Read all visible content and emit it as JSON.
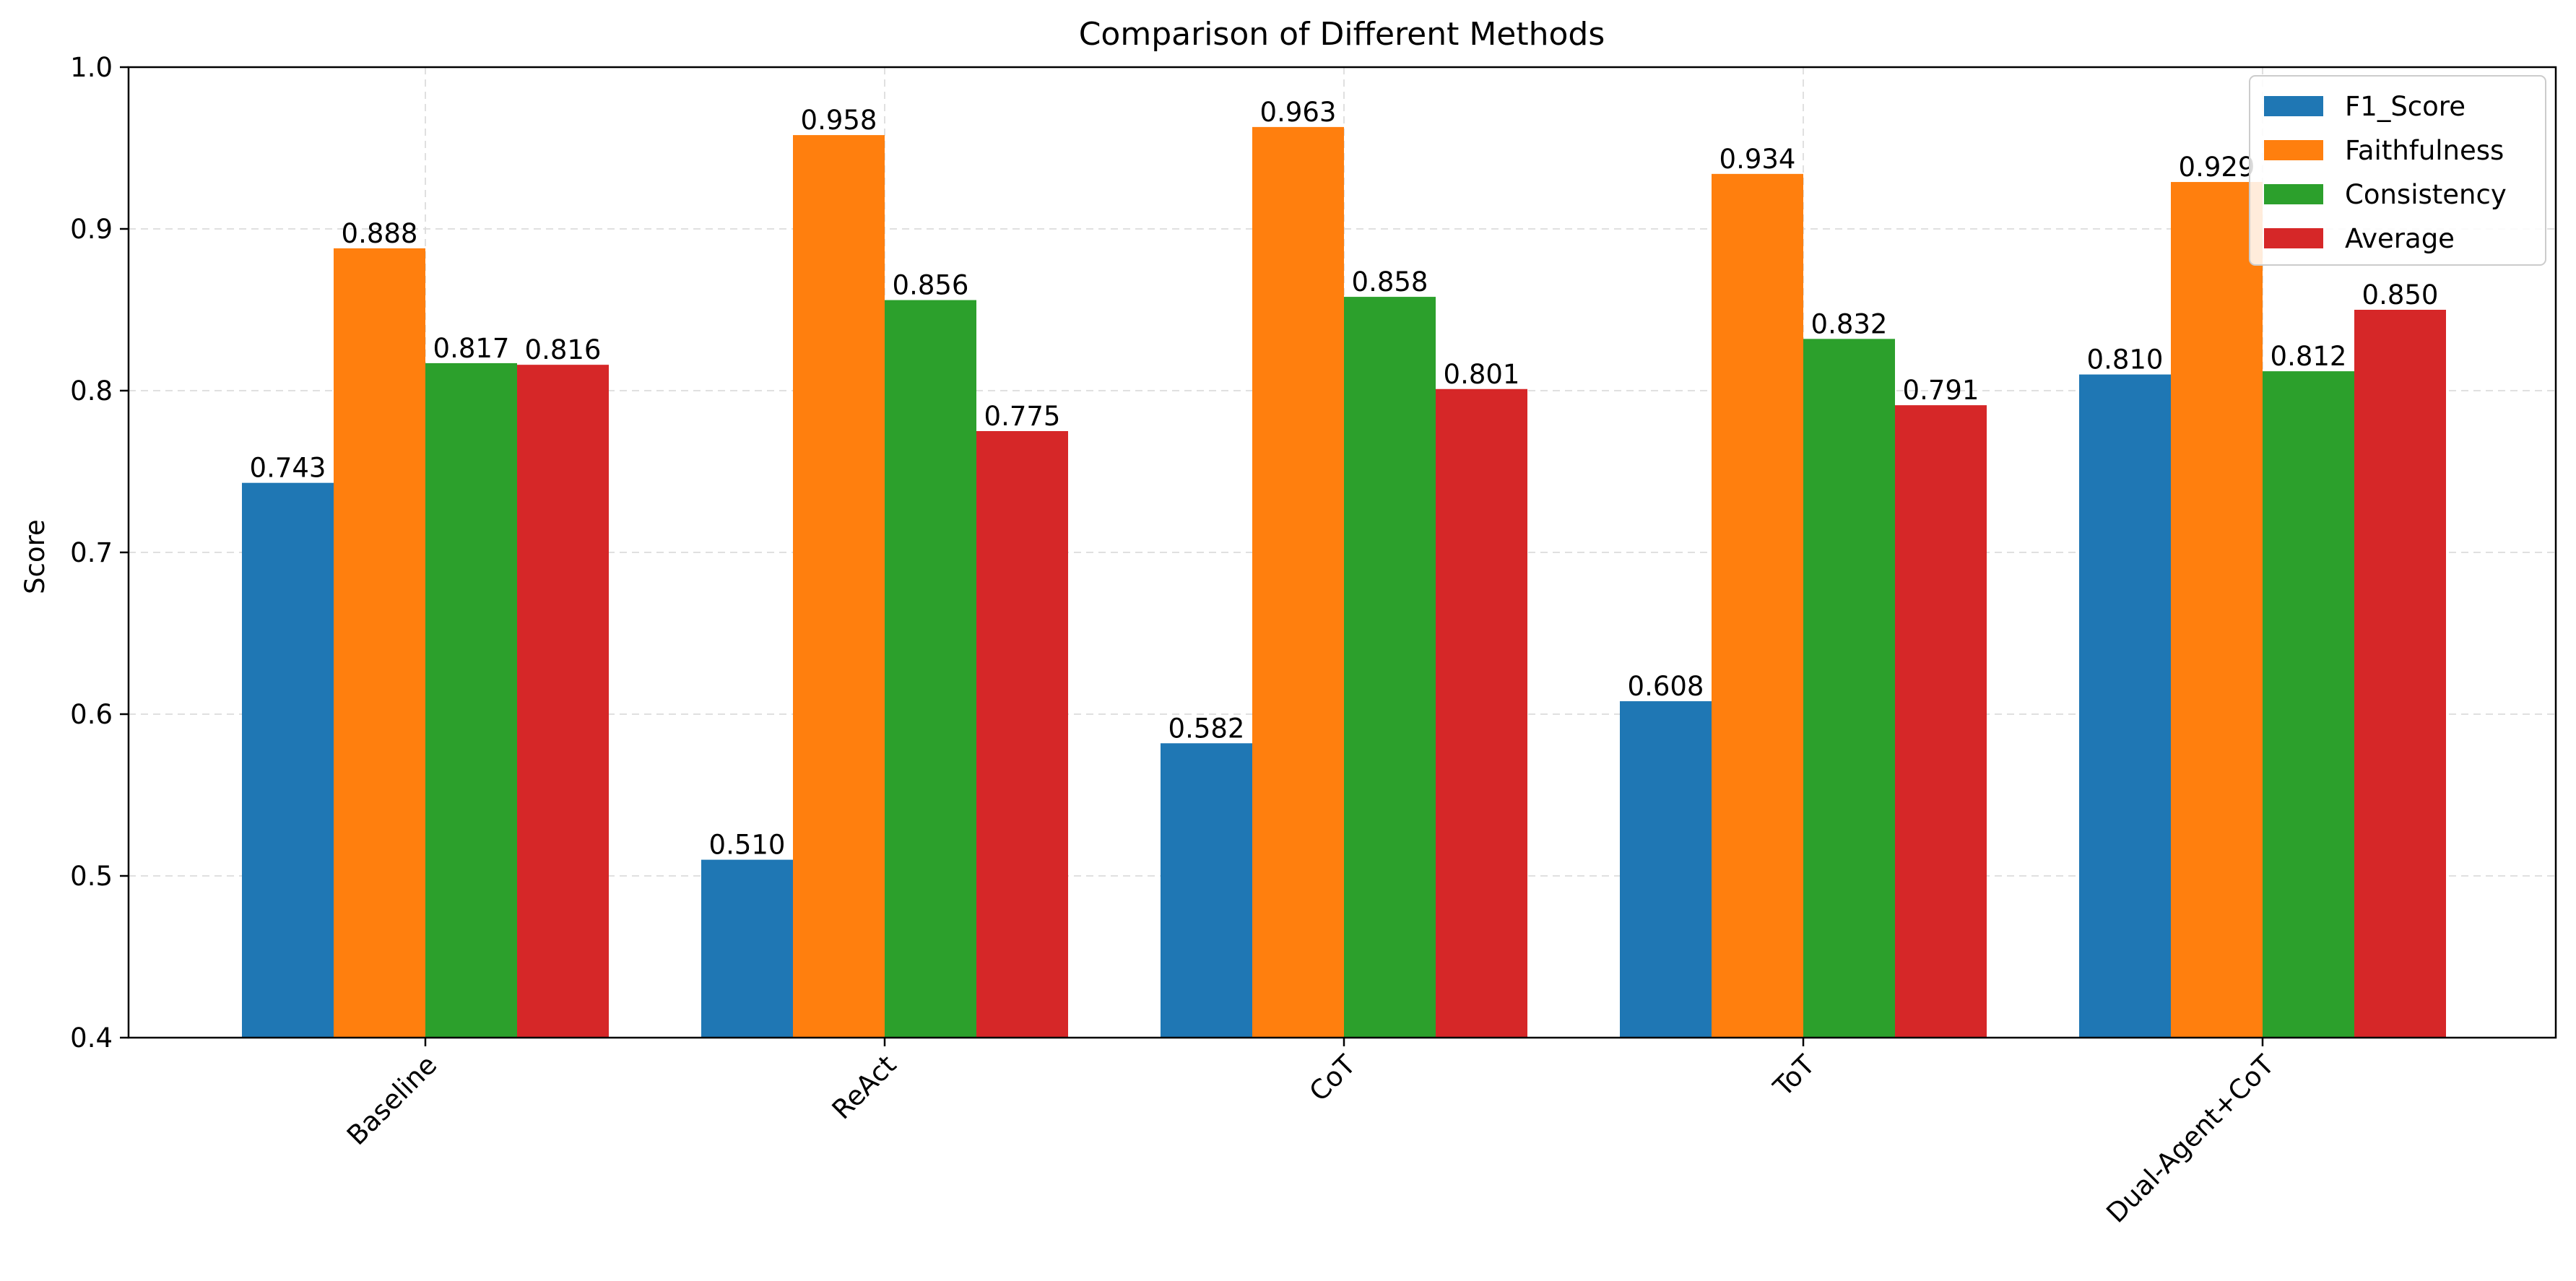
{
  "colors": {
    "F1_Score": "#1f77b4",
    "Faithfulness": "#ff7f0e",
    "Consistency": "#2ca02c",
    "Average": "#d62728"
  },
  "chart_data": {
    "type": "bar",
    "title": "Comparison of Different Methods",
    "xlabel": "",
    "ylabel": "Score",
    "ylim": [
      0.4,
      1.0
    ],
    "yticks": [
      "0.4",
      "0.5",
      "0.6",
      "0.7",
      "0.8",
      "0.9",
      "1.0"
    ],
    "grid": true,
    "legend_position": "top-right",
    "categories": [
      "Baseline",
      "ReAct",
      "CoT",
      "ToT",
      "Dual-Agent+CoT"
    ],
    "series": [
      {
        "name": "F1_Score",
        "values": [
          0.743,
          0.51,
          0.582,
          0.608,
          0.81
        ],
        "labels": [
          "0.743",
          "0.510",
          "0.582",
          "0.608",
          "0.810"
        ]
      },
      {
        "name": "Faithfulness",
        "values": [
          0.888,
          0.958,
          0.963,
          0.934,
          0.929
        ],
        "labels": [
          "0.888",
          "0.958",
          "0.963",
          "0.934",
          "0.929"
        ]
      },
      {
        "name": "Consistency",
        "values": [
          0.817,
          0.856,
          0.858,
          0.832,
          0.812
        ],
        "labels": [
          "0.817",
          "0.856",
          "0.858",
          "0.832",
          "0.812"
        ]
      },
      {
        "name": "Average",
        "values": [
          0.816,
          0.775,
          0.801,
          0.791,
          0.85
        ],
        "labels": [
          "0.816",
          "0.775",
          "0.801",
          "0.791",
          "0.850"
        ]
      }
    ]
  }
}
